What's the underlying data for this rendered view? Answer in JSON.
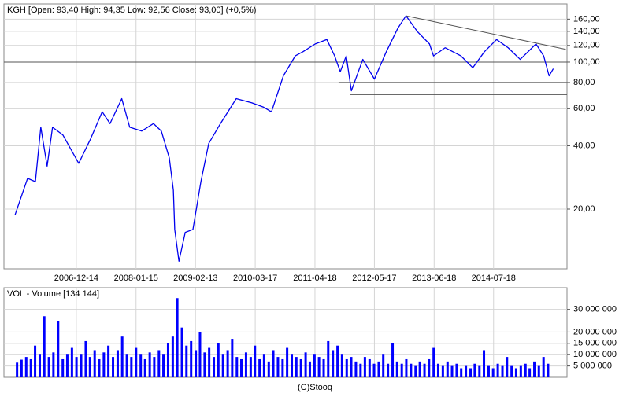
{
  "chart_data": [
    {
      "type": "line",
      "title": "KGH [Open: 93,40  High: 94,35  Low: 92,56  Close: 93,00] (+0,5%)",
      "log": true,
      "grid": true,
      "color": "#0000ee",
      "xlim": [
        "2005-08-20",
        "2015-11-18"
      ],
      "xticks": [
        "2006-12-14",
        "2008-01-15",
        "2009-02-13",
        "2010-03-17",
        "2011-04-18",
        "2012-05-17",
        "2013-06-18",
        "2014-07-18"
      ],
      "ylim": [
        10.4,
        189
      ],
      "yticks": [
        {
          "value": 20,
          "label": "20,00"
        },
        {
          "value": 40,
          "label": "40,00"
        },
        {
          "value": 60,
          "label": "60,00"
        },
        {
          "value": 80,
          "label": "80,00"
        },
        {
          "value": 100,
          "label": "100,00"
        },
        {
          "value": 120,
          "label": "120,00"
        },
        {
          "value": 140,
          "label": "140,00"
        },
        {
          "value": 160,
          "label": "160,00"
        }
      ],
      "x": [
        "2005-11-01",
        "2006-01-24",
        "2006-03-17",
        "2006-04-22",
        "2006-06-03",
        "2006-07-09",
        "2006-09-16",
        "2006-12-30",
        "2007-03-18",
        "2007-06-04",
        "2007-07-26",
        "2007-10-12",
        "2007-12-04",
        "2008-02-22",
        "2008-05-10",
        "2008-07-01",
        "2008-08-23",
        "2008-09-19",
        "2008-09-28",
        "2008-10-26",
        "2008-12-07",
        "2009-01-27",
        "2009-03-21",
        "2009-05-12",
        "2009-07-29",
        "2009-11-11",
        "2010-02-23",
        "2010-05-12",
        "2010-07-03",
        "2010-09-20",
        "2010-12-08",
        "2011-01-28",
        "2011-04-20",
        "2011-07-06",
        "2011-08-27",
        "2011-10-03",
        "2011-11-12",
        "2011-12-16",
        "2012-03-01",
        "2012-05-17",
        "2012-08-04",
        "2012-10-20",
        "2012-12-13",
        "2013-03-01",
        "2013-05-18",
        "2013-06-14",
        "2013-08-30",
        "2013-12-13",
        "2014-03-02",
        "2014-05-18",
        "2014-08-07",
        "2014-10-23",
        "2015-01-11",
        "2015-04-26",
        "2015-06-16",
        "2015-07-22",
        "2015-08-19"
      ],
      "values": [
        18.7,
        28,
        27,
        49,
        32,
        49,
        45,
        33,
        43,
        58,
        51,
        67,
        49,
        47,
        51,
        47,
        35,
        24.6,
        16,
        11.3,
        15.5,
        16,
        27,
        41,
        51,
        67,
        64,
        61,
        58,
        86,
        107,
        112,
        122,
        128,
        107,
        90,
        107,
        73,
        103,
        83,
        112,
        145,
        166,
        139,
        122,
        107,
        117,
        107,
        94,
        112,
        128,
        117,
        103,
        122,
        107,
        86,
        93
      ],
      "lines": [
        {
          "x": [
            "2005-08-20",
            "2015-11-18"
          ],
          "values": [
            100,
            100
          ]
        },
        {
          "x": [
            "2011-09-22",
            "2015-11-18"
          ],
          "values": [
            80,
            80
          ]
        },
        {
          "x": [
            "2011-12-08",
            "2015-11-18"
          ],
          "values": [
            70,
            70
          ]
        },
        {
          "x": [
            "2012-12-13",
            "2015-11-10"
          ],
          "values": [
            166,
            115
          ]
        }
      ]
    },
    {
      "type": "bar",
      "title": "VOL - Volume [134 144]",
      "grid": true,
      "color": "#0000ff",
      "xlim": [
        "2005-08-20",
        "2015-11-18"
      ],
      "ylim": [
        0,
        39600000
      ],
      "yticks": [
        {
          "value": 5000000,
          "label": "5 000 000"
        },
        {
          "value": 10000000,
          "label": "10 000 000"
        },
        {
          "value": 15000000,
          "label": "15 000 000"
        },
        {
          "value": 20000000,
          "label": "20 000 000"
        },
        {
          "value": 30000000,
          "label": "30 000 000"
        }
      ],
      "x": [
        "2005-11-15",
        "2005-12-15",
        "2006-01-15",
        "2006-02-15",
        "2006-03-15",
        "2006-04-15",
        "2006-05-15",
        "2006-06-15",
        "2006-07-15",
        "2006-08-15",
        "2006-09-15",
        "2006-10-15",
        "2006-11-15",
        "2006-12-15",
        "2007-01-15",
        "2007-02-15",
        "2007-03-15",
        "2007-04-15",
        "2007-05-15",
        "2007-06-15",
        "2007-07-15",
        "2007-08-15",
        "2007-09-15",
        "2007-10-15",
        "2007-11-15",
        "2007-12-15",
        "2008-01-15",
        "2008-02-15",
        "2008-03-15",
        "2008-04-15",
        "2008-05-15",
        "2008-06-15",
        "2008-07-15",
        "2008-08-15",
        "2008-09-15",
        "2008-10-15",
        "2008-11-15",
        "2008-12-15",
        "2009-01-15",
        "2009-02-15",
        "2009-03-15",
        "2009-04-15",
        "2009-05-15",
        "2009-06-15",
        "2009-07-15",
        "2009-08-15",
        "2009-09-15",
        "2009-10-15",
        "2009-11-15",
        "2009-12-15",
        "2010-01-15",
        "2010-02-15",
        "2010-03-15",
        "2010-04-15",
        "2010-05-15",
        "2010-06-15",
        "2010-07-15",
        "2010-08-15",
        "2010-09-15",
        "2010-10-15",
        "2010-11-15",
        "2010-12-15",
        "2011-01-15",
        "2011-02-15",
        "2011-03-15",
        "2011-04-15",
        "2011-05-15",
        "2011-06-15",
        "2011-07-15",
        "2011-08-15",
        "2011-09-15",
        "2011-10-15",
        "2011-11-15",
        "2011-12-15",
        "2012-01-15",
        "2012-02-15",
        "2012-03-15",
        "2012-04-15",
        "2012-05-15",
        "2012-06-15",
        "2012-07-15",
        "2012-08-15",
        "2012-09-15",
        "2012-10-15",
        "2012-11-15",
        "2012-12-15",
        "2013-01-15",
        "2013-02-15",
        "2013-03-15",
        "2013-04-15",
        "2013-05-15",
        "2013-06-15",
        "2013-07-15",
        "2013-08-15",
        "2013-09-15",
        "2013-10-15",
        "2013-11-15",
        "2013-12-15",
        "2014-01-15",
        "2014-02-15",
        "2014-03-15",
        "2014-04-15",
        "2014-05-15",
        "2014-06-15",
        "2014-07-15",
        "2014-08-15",
        "2014-09-15",
        "2014-10-15",
        "2014-11-15",
        "2014-12-15",
        "2015-01-15",
        "2015-02-15",
        "2015-03-15",
        "2015-04-15",
        "2015-05-15",
        "2015-06-15",
        "2015-07-15"
      ],
      "values": [
        6500000,
        7800000,
        9000000,
        8000000,
        14000000,
        10000000,
        27000000,
        9000000,
        11000000,
        25000000,
        8000000,
        10000000,
        13000000,
        9000000,
        10000000,
        16000000,
        9000000,
        12000000,
        8000000,
        11000000,
        14000000,
        9000000,
        12000000,
        18000000,
        10000000,
        9000000,
        13000000,
        10000000,
        8000000,
        11000000,
        9000000,
        12000000,
        10000000,
        15000000,
        18000000,
        35000000,
        22000000,
        14000000,
        16000000,
        12000000,
        20000000,
        11000000,
        13000000,
        9000000,
        15000000,
        10000000,
        12000000,
        17000000,
        9000000,
        8000000,
        11000000,
        9000000,
        14000000,
        8000000,
        10000000,
        7000000,
        12000000,
        9000000,
        8000000,
        13000000,
        10000000,
        9000000,
        8000000,
        11000000,
        7000000,
        10000000,
        9000000,
        8000000,
        16000000,
        12000000,
        14000000,
        10000000,
        8000000,
        9000000,
        7000000,
        6000000,
        9000000,
        8000000,
        6000000,
        7000000,
        10000000,
        6000000,
        15000000,
        7000000,
        6000000,
        8000000,
        6000000,
        5000000,
        7000000,
        6000000,
        8000000,
        13000000,
        6000000,
        5000000,
        7000000,
        5000000,
        6000000,
        4000000,
        5000000,
        4000000,
        6000000,
        5000000,
        12000000,
        5000000,
        4000000,
        6000000,
        5000000,
        9000000,
        5000000,
        4000000,
        5000000,
        6000000,
        4000000,
        7000000,
        5000000,
        9000000,
        6000000
      ]
    }
  ],
  "credit": "(C)Stooq"
}
